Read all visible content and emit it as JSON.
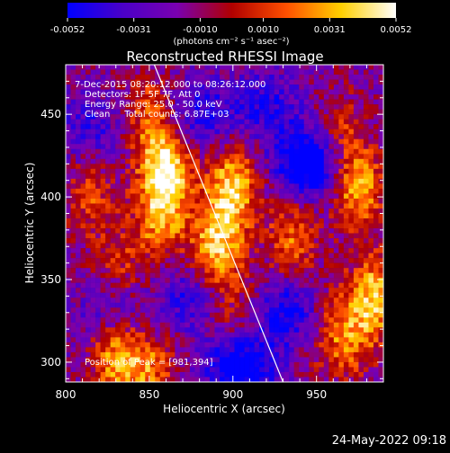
{
  "chart_data": {
    "type": "heatmap",
    "title": "Reconstructed RHESSI Image",
    "xlabel": "Heliocentric X (arcsec)",
    "ylabel": "Heliocentric Y (arcsec)",
    "xlim": [
      800,
      990
    ],
    "ylim": [
      288,
      480
    ],
    "x_ticks": [
      800,
      850,
      900,
      950
    ],
    "y_ticks": [
      300,
      350,
      400,
      450
    ],
    "x_minor_step": 10,
    "y_minor_step": 10,
    "colorbar": {
      "range": [
        -0.0052,
        0.0052
      ],
      "tick_labels": [
        "-0.0052",
        "-0.0031",
        "-0.0010",
        "0.0010",
        "0.0031",
        "0.0052"
      ],
      "unit_label": "(photons cm⁻² s⁻¹ asec⁻²)",
      "colors": [
        "#0000ff",
        "#4a00c8",
        "#7a00b0",
        "#b00000",
        "#ff5000",
        "#ffd000",
        "#ffffff"
      ]
    },
    "info_lines": [
      "7-Dec-2015 08:20:12.000 to 08:26:12.000",
      "Detectors: 1F 5F 7F, Att 0",
      "Energy Range: 25.0 - 50.0 keV",
      "Clean     Total counts: 6.87E+03"
    ],
    "peak_label": "Position of Peak = [981,394]",
    "peak_position": [
      981,
      394
    ],
    "hot_spots": [
      {
        "x": 860,
        "y": 415,
        "amp": 1.0
      },
      {
        "x": 856,
        "y": 385,
        "amp": 0.55
      },
      {
        "x": 850,
        "y": 450,
        "amp": 0.5
      },
      {
        "x": 900,
        "y": 405,
        "amp": 0.85
      },
      {
        "x": 890,
        "y": 370,
        "amp": 0.8
      },
      {
        "x": 830,
        "y": 305,
        "amp": 0.7
      },
      {
        "x": 850,
        "y": 295,
        "amp": 0.55
      },
      {
        "x": 815,
        "y": 400,
        "amp": 0.45
      },
      {
        "x": 833,
        "y": 355,
        "amp": 0.35
      },
      {
        "x": 935,
        "y": 375,
        "amp": 0.55
      },
      {
        "x": 975,
        "y": 405,
        "amp": 0.75
      },
      {
        "x": 985,
        "y": 340,
        "amp": 0.8
      },
      {
        "x": 970,
        "y": 315,
        "amp": 0.45
      },
      {
        "x": 955,
        "y": 320,
        "amp": 0.35
      },
      {
        "x": 965,
        "y": 440,
        "amp": 0.35
      },
      {
        "x": 900,
        "y": 330,
        "amp": 0.3
      }
    ],
    "cold_spots": [
      {
        "x": 945,
        "y": 420,
        "amp": 0.9
      },
      {
        "x": 905,
        "y": 298,
        "amp": 0.8
      },
      {
        "x": 935,
        "y": 330,
        "amp": 0.6
      },
      {
        "x": 830,
        "y": 330,
        "amp": 0.45
      },
      {
        "x": 880,
        "y": 450,
        "amp": 0.45
      },
      {
        "x": 920,
        "y": 455,
        "amp": 0.4
      },
      {
        "x": 815,
        "y": 440,
        "amp": 0.35
      },
      {
        "x": 875,
        "y": 340,
        "amp": 0.4
      }
    ],
    "limb_line": [
      [
        853,
        480
      ],
      [
        930,
        288
      ]
    ],
    "grid": false
  },
  "footer": {
    "timestamp": "24-May-2022 09:18"
  }
}
